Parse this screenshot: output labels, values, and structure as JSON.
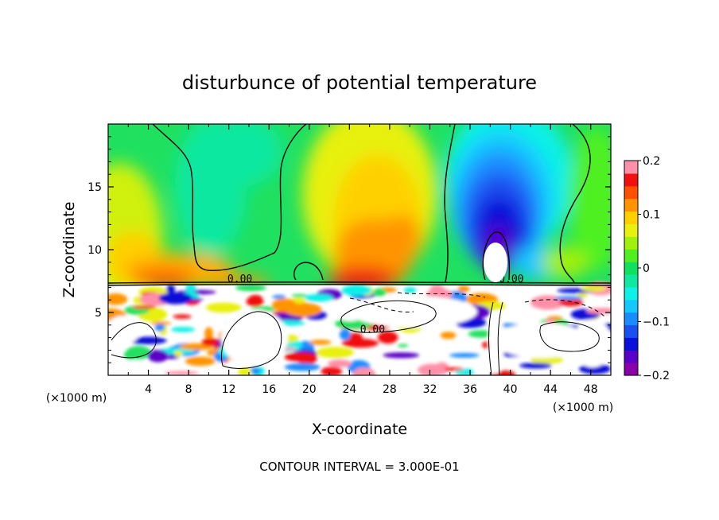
{
  "chart_data": {
    "type": "heatmap",
    "title": "disturbunce of potential temperature",
    "xlabel": "X-coordinate",
    "ylabel": "Z-coordinate",
    "x_unit_left": "(×1000 m)",
    "x_unit_right": "(×1000 m)",
    "xlim": [
      0,
      50
    ],
    "ylim": [
      0,
      20
    ],
    "x_ticks": [
      4,
      8,
      12,
      16,
      20,
      24,
      28,
      32,
      36,
      40,
      44,
      48
    ],
    "y_ticks": [
      5,
      10,
      15
    ],
    "colorbar": {
      "min": -0.2,
      "max": 0.2,
      "tick_values": [
        0.2,
        0.1,
        0,
        -0.1,
        -0.2
      ],
      "tick_labels": [
        "0.2",
        "0.1",
        "0",
        "−0.1",
        "−0.2"
      ],
      "colors": [
        "#8a00a8",
        "#5a00c8",
        "#0a10d8",
        "#1a50f0",
        "#1a8cff",
        "#14c8ff",
        "#10f0e8",
        "#10e8a0",
        "#10e060",
        "#50f020",
        "#a0f010",
        "#e8f010",
        "#ffd000",
        "#ff9400",
        "#ff5000",
        "#f01010",
        "#ff90a8"
      ]
    },
    "contour_labels": [
      {
        "x": 13.1,
        "y": 7.4,
        "text": "0.00"
      },
      {
        "x": 40.1,
        "y": 7.4,
        "text": "0.00"
      },
      {
        "x": 26.3,
        "y": 3.4,
        "text": "0.00"
      }
    ],
    "features": {
      "boundary_z": 7.3,
      "upper_warm_columns": [
        {
          "x": 4,
          "width": 3.5,
          "amplitude": 0.09
        },
        {
          "x": 27.5,
          "width": 3.2,
          "amplitude": 0.12
        },
        {
          "x": 30,
          "width": 2.0,
          "amplitude": 0.05
        }
      ],
      "upper_cold_plume": {
        "x": 39,
        "width": 3.5,
        "amplitude": -0.18
      },
      "lower_white_blobs": [
        {
          "x": 17,
          "z": 3.3,
          "note": "saturated"
        },
        {
          "x": 33,
          "z": 5.0,
          "note": "saturated"
        },
        {
          "x": 48,
          "z": 3.3,
          "note": "saturated"
        }
      ]
    },
    "footer": "CONTOUR INTERVAL = 3.000E-01"
  }
}
